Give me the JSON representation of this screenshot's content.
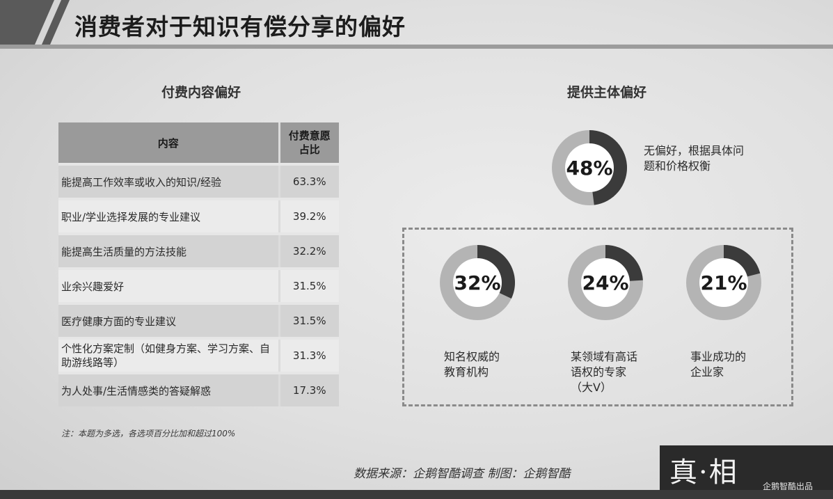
{
  "page_title": "消费者对于知识有偿分享的偏好",
  "chart_data": [
    {
      "type": "table",
      "title": "付费内容偏好",
      "columns": [
        "内容",
        "付费意愿占比"
      ],
      "rows": [
        [
          "能提高工作效率或收入的知识/经验",
          "63.3%"
        ],
        [
          "职业/学业选择发展的专业建议",
          "39.2%"
        ],
        [
          "能提高生活质量的方法技能",
          "32.2%"
        ],
        [
          "业余兴趣爱好",
          "31.5%"
        ],
        [
          "医疗健康方面的专业建议",
          "31.5%"
        ],
        [
          "个性化方案定制（如健身方案、学习方案、自助游线路等）",
          "31.3%"
        ],
        [
          "为人处事/生活情感类的答疑解惑",
          "17.3%"
        ]
      ],
      "note": "注：本题为多选，各选项百分比加和超过100%"
    },
    {
      "type": "pie",
      "title": "提供主体偏好",
      "slices": [
        {
          "label": "无偏好，根据具体问题和价格权衡",
          "value": 48,
          "display": "48%"
        },
        {
          "label": "知名权威的教育机构",
          "value": 32,
          "display": "32%"
        },
        {
          "label": "某领域有高话语权的专家（大V）",
          "value": 24,
          "display": "24%"
        },
        {
          "label": "事业成功的企业家",
          "value": 21,
          "display": "21%"
        }
      ],
      "colors": {
        "filled": "#3b3b3b",
        "remainder": "#b4b4b4",
        "inner": "#ffffff"
      }
    }
  ],
  "labels": {
    "table_header_content": "内容",
    "table_header_pct_line1": "付费意愿",
    "table_header_pct_line2": "占比",
    "desc_48_line1": "无偏好，根据具体问",
    "desc_48_line2": "题和价格权衡",
    "desc_32_line1": "知名权威的",
    "desc_32_line2": "教育机构",
    "desc_24_line1": "某领域有高话",
    "desc_24_line2": "语权的专家",
    "desc_24_line3": "（大V）",
    "desc_21_line1": "事业成功的",
    "desc_21_line2": "企业家"
  },
  "footer": {
    "source": "数据来源：企鹅智酷调查  制图：企鹅智酷",
    "brand_logo": "真·相",
    "brand_sub": "企鹅智酷出品"
  }
}
